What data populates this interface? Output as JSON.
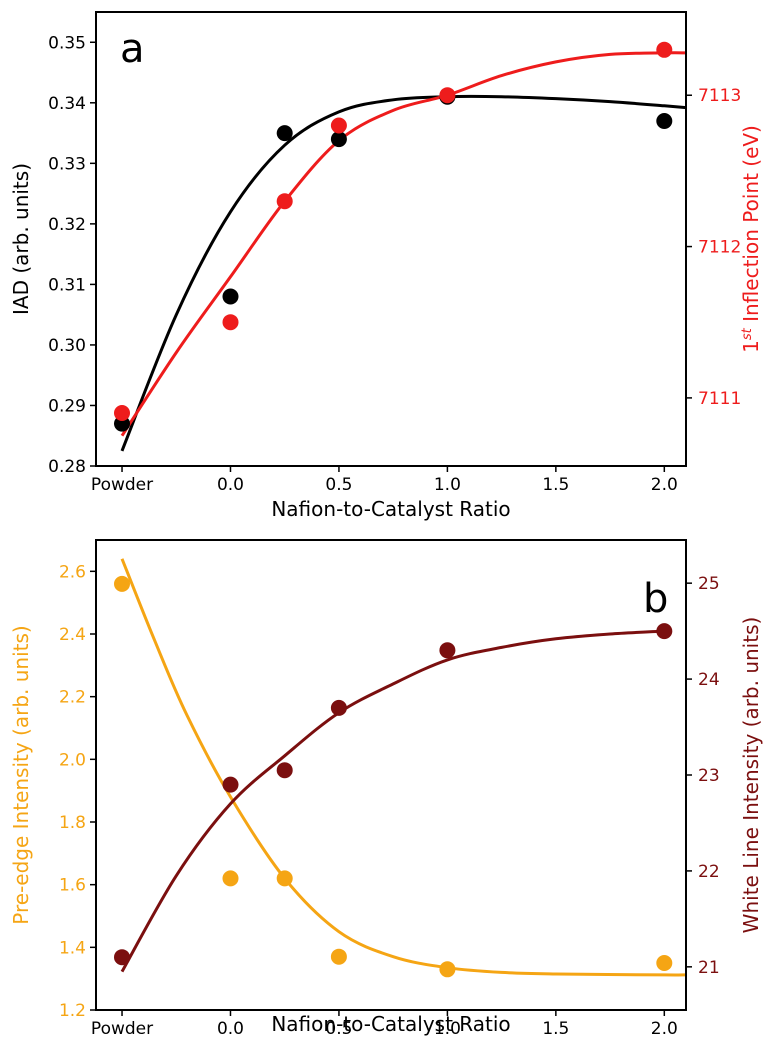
{
  "chart_data": [
    {
      "type": "scatter",
      "panel_label": "a",
      "xlabel": "Nafion-to-Catalyst Ratio",
      "x_categorical_labels": [
        "Powder"
      ],
      "xticks": [
        0.0,
        0.5,
        1.0,
        1.5,
        2.0
      ],
      "xtick_labels": [
        "Powder",
        "0.0",
        "0.5",
        "1.0",
        "1.5",
        "2.0"
      ],
      "xlim": [
        -0.62,
        2.1
      ],
      "ylabel_left": "IAD (arb. units)",
      "ylim_left": [
        0.28,
        0.355
      ],
      "yticks_left": [
        0.28,
        0.29,
        0.3,
        0.31,
        0.32,
        0.33,
        0.34,
        0.35
      ],
      "ytick_labels_left": [
        "0.28",
        "0.29",
        "0.30",
        "0.31",
        "0.32",
        "0.33",
        "0.34",
        "0.35"
      ],
      "ylabel_right": "1st Inflection Point (eV)",
      "ylabel_right_parts": {
        "pre": "1",
        "sup": "st",
        "post": " Inflection Point (eV)"
      },
      "ylim_right": [
        7110.55,
        7113.55
      ],
      "yticks_right": [
        7111,
        7112,
        7113
      ],
      "ytick_labels_right": [
        "7111",
        "7112",
        "7113"
      ],
      "grid": false,
      "series": [
        {
          "axis": "left",
          "color": "#000000",
          "x": [
            "Powder",
            0.0,
            0.25,
            0.5,
            1.0,
            2.0
          ],
          "y": [
            0.287,
            0.308,
            0.335,
            0.334,
            0.341,
            0.337
          ],
          "fit": {
            "x": [
              -0.5,
              -0.25,
              0.0,
              0.25,
              0.5,
              0.75,
              1.0,
              1.25,
              1.5,
              1.75,
              2.0,
              2.1
            ],
            "y": [
              0.2825,
              0.305,
              0.322,
              0.333,
              0.3385,
              0.3405,
              0.341,
              0.341,
              0.3407,
              0.3402,
              0.3395,
              0.3392
            ]
          }
        },
        {
          "axis": "right",
          "color": "#ee1c1c",
          "x": [
            "Powder",
            0.0,
            0.25,
            0.5,
            1.0,
            2.0
          ],
          "y": [
            7110.9,
            7111.5,
            7112.3,
            7112.8,
            7113.0,
            7113.3
          ],
          "fit": {
            "x": [
              -0.5,
              -0.25,
              0.0,
              0.25,
              0.5,
              0.75,
              1.0,
              1.25,
              1.5,
              1.75,
              2.0,
              2.1
            ],
            "y": [
              7110.75,
              7111.3,
              7111.8,
              7112.3,
              7112.7,
              7112.9,
              7113.0,
              7113.13,
              7113.22,
              7113.27,
              7113.28,
              7113.28
            ]
          }
        }
      ]
    },
    {
      "type": "scatter",
      "panel_label": "b",
      "xlabel": "Nafion-to-Catalyst Ratio",
      "x_categorical_labels": [
        "Powder"
      ],
      "xticks": [
        0.0,
        0.5,
        1.0,
        1.5,
        2.0
      ],
      "xtick_labels": [
        "Powder",
        "0.0",
        "0.5",
        "1.0",
        "1.5",
        "2.0"
      ],
      "xlim": [
        -0.62,
        2.1
      ],
      "ylabel_left": "Pre-edge Intensity (arb. units)",
      "ylim_left": [
        1.2,
        2.7
      ],
      "yticks_left": [
        1.2,
        1.4,
        1.6,
        1.8,
        2.0,
        2.2,
        2.4,
        2.6
      ],
      "ytick_labels_left": [
        "1.2",
        "1.4",
        "1.6",
        "1.8",
        "2.0",
        "2.2",
        "2.4",
        "2.6"
      ],
      "ylabel_right": "White Line Intensity (arb. units)",
      "ylim_right": [
        20.55,
        25.45
      ],
      "yticks_right": [
        21,
        22,
        23,
        24,
        25
      ],
      "ytick_labels_right": [
        "21",
        "22",
        "23",
        "24",
        "25"
      ],
      "grid": false,
      "series": [
        {
          "axis": "left",
          "color": "#f5a514",
          "x": [
            "Powder",
            0.0,
            0.25,
            0.5,
            1.0,
            2.0
          ],
          "y": [
            2.56,
            1.62,
            1.62,
            1.37,
            1.33,
            1.35
          ],
          "fit": {
            "x": [
              -0.5,
              -0.35,
              -0.2,
              0.0,
              0.25,
              0.5,
              0.75,
              1.0,
              1.25,
              1.5,
              2.0,
              2.1
            ],
            "y": [
              2.64,
              2.38,
              2.14,
              1.88,
              1.62,
              1.45,
              1.37,
              1.335,
              1.32,
              1.315,
              1.312,
              1.312
            ]
          }
        },
        {
          "axis": "right",
          "color": "#7b0f0f",
          "x": [
            "Powder",
            0.0,
            0.25,
            0.5,
            1.0,
            2.0
          ],
          "y": [
            21.1,
            22.9,
            23.05,
            23.7,
            24.3,
            24.5
          ],
          "fit": {
            "x": [
              -0.5,
              -0.25,
              0.0,
              0.25,
              0.5,
              0.75,
              1.0,
              1.25,
              1.5,
              1.75,
              2.0
            ],
            "y": [
              20.95,
              21.95,
              22.7,
              23.2,
              23.65,
              23.95,
              24.2,
              24.33,
              24.42,
              24.47,
              24.5
            ]
          }
        }
      ]
    }
  ]
}
